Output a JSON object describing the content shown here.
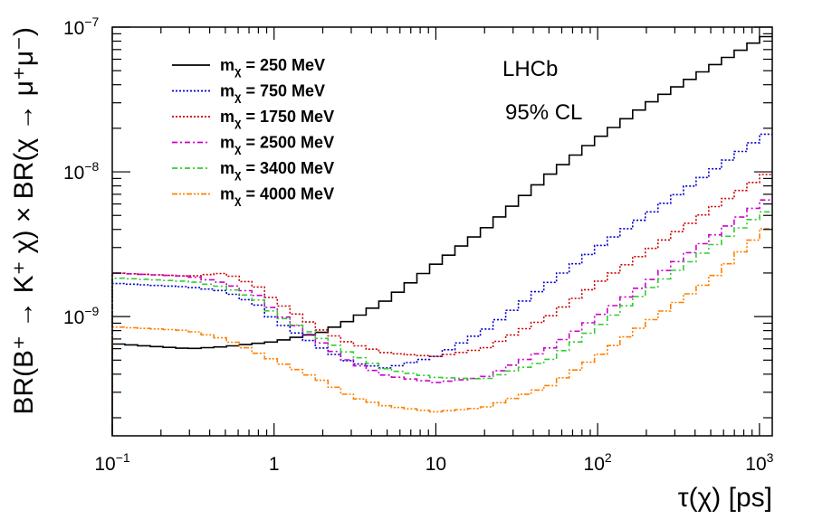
{
  "chart_data": {
    "type": "line",
    "title": "",
    "xlabel": "τ(χ) [ps]",
    "ylabel": "BR(B⁺ → K⁺ χ) × BR(χ → μ⁺μ⁻)",
    "x_scale": "log",
    "y_scale": "log",
    "xlim": [
      0.1,
      1200
    ],
    "ylim": [
      1.5e-10,
      1e-07
    ],
    "x_ticks": [
      {
        "value": 0.1,
        "base": "10",
        "exp": "−1"
      },
      {
        "value": 1,
        "base": "1",
        "exp": ""
      },
      {
        "value": 10,
        "base": "10",
        "exp": ""
      },
      {
        "value": 100,
        "base": "10",
        "exp": "2"
      },
      {
        "value": 1000,
        "base": "10",
        "exp": "3"
      }
    ],
    "y_ticks": [
      {
        "value": 1e-09,
        "base": "10",
        "exp": "−9"
      },
      {
        "value": 1e-08,
        "base": "10",
        "exp": "−8"
      },
      {
        "value": 1e-07,
        "base": "10",
        "exp": "−7"
      }
    ],
    "grid": false,
    "legend_position": "top-left",
    "annotations": [
      "LHCb",
      "95% CL"
    ],
    "series": [
      {
        "name": "mχ = 250 MeV",
        "label_main": "m",
        "label_sub": "χ",
        "label_rest": " = 250 MeV",
        "color": "#000000",
        "style": "solid",
        "points": [
          [
            0.1,
            6.5e-10
          ],
          [
            0.3,
            6e-10
          ],
          [
            0.5,
            6.2e-10
          ],
          [
            1,
            6.7e-10
          ],
          [
            2,
            7.8e-10
          ],
          [
            3,
            9.5e-10
          ],
          [
            5,
            1.3e-09
          ],
          [
            10,
            2.3e-09
          ],
          [
            20,
            4e-09
          ],
          [
            50,
            9.5e-09
          ],
          [
            100,
            1.7e-08
          ],
          [
            200,
            2.9e-08
          ],
          [
            500,
            5.3e-08
          ],
          [
            1000,
            8.2e-08
          ],
          [
            1200,
            9e-08
          ]
        ]
      },
      {
        "name": "mχ = 750 MeV",
        "label_main": "m",
        "label_sub": "χ",
        "label_rest": " = 750 MeV",
        "color": "#0000cc",
        "style": "dotted",
        "points": [
          [
            0.1,
            1.7e-09
          ],
          [
            0.3,
            1.6e-09
          ],
          [
            0.5,
            1.5e-09
          ],
          [
            0.8,
            1.2e-09
          ],
          [
            1,
            9.5e-10
          ],
          [
            2,
            6e-10
          ],
          [
            3,
            4.8e-10
          ],
          [
            5,
            4.4e-10
          ],
          [
            10,
            5.3e-10
          ],
          [
            20,
            8e-10
          ],
          [
            50,
            1.7e-09
          ],
          [
            100,
            3e-09
          ],
          [
            200,
            5e-09
          ],
          [
            500,
            1e-08
          ],
          [
            1000,
            1.7e-08
          ],
          [
            1200,
            1.95e-08
          ]
        ]
      },
      {
        "name": "mχ = 1750 MeV",
        "label_main": "m",
        "label_sub": "χ",
        "label_rest": " = 1750 MeV",
        "color": "#cc0000",
        "style": "dotted",
        "points": [
          [
            0.1,
            2e-09
          ],
          [
            0.3,
            1.9e-09
          ],
          [
            0.5,
            2e-09
          ],
          [
            0.8,
            1.6e-09
          ],
          [
            1,
            1.3e-09
          ],
          [
            2,
            8e-10
          ],
          [
            3,
            6.5e-10
          ],
          [
            5,
            5.6e-10
          ],
          [
            10,
            5.3e-10
          ],
          [
            20,
            6e-10
          ],
          [
            50,
            1e-09
          ],
          [
            100,
            1.7e-09
          ],
          [
            200,
            2.8e-09
          ],
          [
            500,
            5.5e-09
          ],
          [
            1000,
            9e-09
          ],
          [
            1200,
            1.02e-08
          ]
        ]
      },
      {
        "name": "mχ = 2500 MeV",
        "label_main": "m",
        "label_sub": "χ",
        "label_rest": " = 2500 MeV",
        "color": "#cc00cc",
        "style": "dashdot",
        "points": [
          [
            0.1,
            2e-09
          ],
          [
            0.3,
            1.9e-09
          ],
          [
            0.5,
            1.7e-09
          ],
          [
            0.8,
            1.4e-09
          ],
          [
            1,
            1.1e-09
          ],
          [
            2,
            6.5e-10
          ],
          [
            3,
            4.8e-10
          ],
          [
            5,
            3.9e-10
          ],
          [
            10,
            3.5e-10
          ],
          [
            20,
            3.8e-10
          ],
          [
            50,
            6e-10
          ],
          [
            100,
            1e-09
          ],
          [
            200,
            1.7e-09
          ],
          [
            500,
            3.5e-09
          ],
          [
            1000,
            6e-09
          ],
          [
            1200,
            6.8e-09
          ]
        ]
      },
      {
        "name": "mχ = 3400 MeV",
        "label_main": "m",
        "label_sub": "χ",
        "label_rest": " = 3400 MeV",
        "color": "#33cc33",
        "style": "dashdot",
        "points": [
          [
            0.1,
            1.85e-09
          ],
          [
            0.3,
            1.75e-09
          ],
          [
            0.5,
            1.6e-09
          ],
          [
            0.8,
            1.3e-09
          ],
          [
            1,
            1.05e-09
          ],
          [
            2,
            7e-10
          ],
          [
            3,
            5.5e-10
          ],
          [
            5,
            4.3e-10
          ],
          [
            10,
            3.8e-10
          ],
          [
            20,
            3.7e-10
          ],
          [
            50,
            5e-10
          ],
          [
            100,
            8.5e-10
          ],
          [
            200,
            1.5e-09
          ],
          [
            500,
            3e-09
          ],
          [
            1000,
            5e-09
          ],
          [
            1200,
            5.6e-09
          ]
        ]
      },
      {
        "name": "mχ = 4000 MeV",
        "label_main": "m",
        "label_sub": "χ",
        "label_rest": " = 4000 MeV",
        "color": "#ff8000",
        "style": "dashdotdot",
        "points": [
          [
            0.1,
            8.5e-10
          ],
          [
            0.3,
            8e-10
          ],
          [
            0.5,
            7e-10
          ],
          [
            1,
            5e-10
          ],
          [
            2,
            3.6e-10
          ],
          [
            3,
            2.8e-10
          ],
          [
            5,
            2.4e-10
          ],
          [
            10,
            2.2e-10
          ],
          [
            20,
            2.35e-10
          ],
          [
            50,
            3.3e-10
          ],
          [
            100,
            5.3e-10
          ],
          [
            200,
            9e-10
          ],
          [
            500,
            1.8e-09
          ],
          [
            1000,
            3.7e-09
          ],
          [
            1200,
            4.4e-09
          ]
        ]
      }
    ]
  }
}
